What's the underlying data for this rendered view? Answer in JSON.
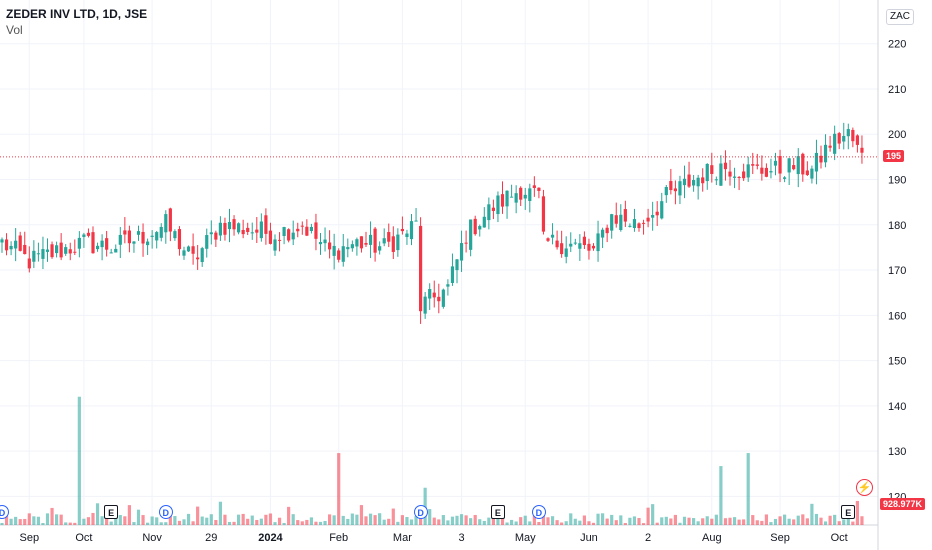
{
  "legend": {
    "title": "ZEDER INV LTD, 1D, JSE",
    "volume": "Vol"
  },
  "currency": "ZAC",
  "last_price_label": "195",
  "last_volume_label": "928.977K",
  "colors": {
    "up": "#26a69a",
    "down": "#f23645",
    "grid": "#f0f3fa",
    "text": "#131722"
  },
  "events": [
    {
      "type": "D",
      "label": "D",
      "date_index": 0
    },
    {
      "type": "E",
      "label": "E",
      "date_index": 24
    },
    {
      "type": "D",
      "label": "D",
      "date_index": 36
    },
    {
      "type": "D",
      "label": "D",
      "date_index": 92
    },
    {
      "type": "E",
      "label": "E",
      "date_index": 109
    },
    {
      "type": "D",
      "label": "D",
      "date_index": 118
    },
    {
      "type": "E",
      "label": "E",
      "date_index": 186
    }
  ],
  "chart_data": {
    "type": "candlestick",
    "ylim": [
      117,
      227
    ],
    "y_ticks": [
      120,
      130,
      140,
      150,
      160,
      170,
      180,
      190,
      200,
      210,
      220
    ],
    "x_ticks": [
      {
        "label": "Sep",
        "index": 6
      },
      {
        "label": "Oct",
        "index": 18
      },
      {
        "label": "Nov",
        "index": 33
      },
      {
        "label": "29",
        "index": 46
      },
      {
        "label": "2024",
        "index": 59
      },
      {
        "label": "Feb",
        "index": 74
      },
      {
        "label": "Mar",
        "index": 88
      },
      {
        "label": "3",
        "index": 101
      },
      {
        "label": "May",
        "index": 115
      },
      {
        "label": "Jun",
        "index": 129
      },
      {
        "label": "2",
        "index": 142
      },
      {
        "label": "Aug",
        "index": 156
      },
      {
        "label": "Sep",
        "index": 171
      },
      {
        "label": "Oct",
        "index": 184
      }
    ],
    "last_price": 195,
    "volume_max_k": 1500,
    "anchors": [
      [
        0,
        176
      ],
      [
        6,
        172
      ],
      [
        12,
        174
      ],
      [
        18,
        176
      ],
      [
        24,
        175
      ],
      [
        30,
        177
      ],
      [
        36,
        180
      ],
      [
        42,
        172
      ],
      [
        48,
        180
      ],
      [
        54,
        179
      ],
      [
        60,
        178
      ],
      [
        66,
        180
      ],
      [
        72,
        174
      ],
      [
        78,
        176
      ],
      [
        84,
        175
      ],
      [
        91,
        180
      ],
      [
        92,
        162
      ],
      [
        98,
        166
      ],
      [
        102,
        178
      ],
      [
        108,
        184
      ],
      [
        114,
        188
      ],
      [
        118,
        186
      ],
      [
        119,
        176
      ],
      [
        124,
        176
      ],
      [
        130,
        174
      ],
      [
        134,
        182
      ],
      [
        140,
        180
      ],
      [
        146,
        186
      ],
      [
        152,
        190
      ],
      [
        158,
        193
      ],
      [
        164,
        192
      ],
      [
        170,
        192
      ],
      [
        174,
        193
      ],
      [
        178,
        192
      ],
      [
        182,
        198
      ],
      [
        186,
        200
      ],
      [
        189,
        195
      ]
    ],
    "volume_spikes_k": [
      {
        "index": 17,
        "value": 1480
      },
      {
        "index": 74,
        "value": 830
      },
      {
        "index": 93,
        "value": 430
      },
      {
        "index": 158,
        "value": 680
      },
      {
        "index": 164,
        "value": 830
      }
    ]
  }
}
